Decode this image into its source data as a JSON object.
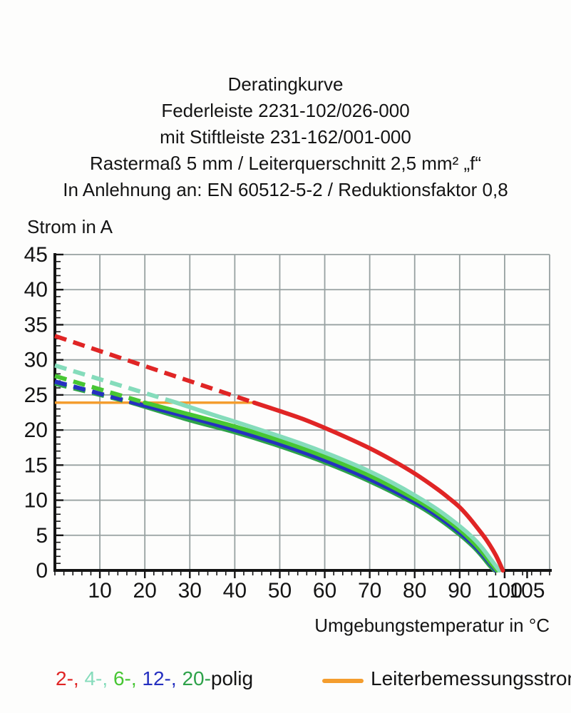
{
  "title": {
    "lines": [
      "Deratingkurve",
      "Federleiste 2231-102/026-000",
      "mit Stiftleiste 231-162/001-000",
      "Rastermaß 5 mm / Leiterquerschnitt 2,5 mm² „f“",
      "In Anlehnung an: EN 60512-5-2 / Reduktionsfaktor 0,8"
    ]
  },
  "chart_data": {
    "type": "line",
    "title": "Deratingkurve",
    "x_axis": {
      "label": "Umgebungstemperatur in °C",
      "min": 0,
      "max": 110,
      "grid_step": 10,
      "minor_tick_step": 2,
      "tick_labels": [
        10,
        20,
        30,
        40,
        50,
        60,
        70,
        80,
        90,
        100,
        105
      ]
    },
    "y_axis": {
      "label": "Strom in A",
      "min": 0,
      "max": 45,
      "grid_step": 5,
      "minor_tick_step": 1,
      "tick_labels": [
        0,
        5,
        10,
        15,
        20,
        25,
        30,
        35,
        40,
        45
      ]
    },
    "grid": true,
    "grid_color": "#97a1a1",
    "axis_color": "#141414",
    "rated_current": {
      "label": "Leiterbemessungsstrom",
      "color": "#f49d2e",
      "value_a": 23.9,
      "x_start": 0,
      "x_end": 44.3
    },
    "series": [
      {
        "name": "20-polig",
        "poles": 20,
        "color": "#2ea24a",
        "dashed": [
          [
            0,
            26.6
          ],
          [
            17,
            23.9
          ]
        ],
        "solid": [
          [
            17,
            23.9
          ],
          [
            30,
            21.4
          ],
          [
            40,
            19.7
          ],
          [
            50,
            17.7
          ],
          [
            60,
            15.4
          ],
          [
            70,
            12.7
          ],
          [
            80,
            9.5
          ],
          [
            85,
            7.5
          ],
          [
            90,
            5.1
          ],
          [
            93,
            3.4
          ],
          [
            95,
            2.0
          ],
          [
            96.8,
            0.6
          ],
          [
            97.8,
            0
          ]
        ]
      },
      {
        "name": "12-polig",
        "poles": 12,
        "color": "#2530c0",
        "dashed": [
          [
            0,
            26.9
          ],
          [
            17.5,
            23.9
          ]
        ],
        "solid": [
          [
            17.5,
            23.9
          ],
          [
            30,
            21.8
          ],
          [
            40,
            20.0
          ],
          [
            50,
            18.0
          ],
          [
            60,
            15.7
          ],
          [
            70,
            13.0
          ],
          [
            80,
            9.8
          ],
          [
            85,
            7.8
          ],
          [
            90,
            5.4
          ],
          [
            93,
            3.7
          ],
          [
            95,
            2.3
          ],
          [
            97,
            0.8
          ],
          [
            98,
            0
          ]
        ]
      },
      {
        "name": "6-polig",
        "poles": 6,
        "color": "#47c633",
        "dashed": [
          [
            0,
            27.7
          ],
          [
            20,
            23.9
          ]
        ],
        "solid": [
          [
            20,
            23.9
          ],
          [
            30,
            22.2
          ],
          [
            40,
            20.5
          ],
          [
            50,
            18.5
          ],
          [
            60,
            16.2
          ],
          [
            70,
            13.5
          ],
          [
            80,
            10.2
          ],
          [
            85,
            8.2
          ],
          [
            90,
            5.8
          ],
          [
            93,
            4.0
          ],
          [
            95,
            2.6
          ],
          [
            97,
            1.0
          ],
          [
            98.3,
            0
          ]
        ]
      },
      {
        "name": "4-polig",
        "poles": 4,
        "color": "#85dcbb",
        "dashed": [
          [
            0,
            29.2
          ],
          [
            27,
            23.9
          ]
        ],
        "solid": [
          [
            27,
            23.9
          ],
          [
            35,
            22.2
          ],
          [
            40,
            21.2
          ],
          [
            50,
            19.1
          ],
          [
            55,
            18.0
          ],
          [
            60,
            16.8
          ],
          [
            65,
            15.5
          ],
          [
            70,
            14.1
          ],
          [
            75,
            12.5
          ],
          [
            80,
            10.7
          ],
          [
            85,
            8.7
          ],
          [
            90,
            6.3
          ],
          [
            93,
            4.6
          ],
          [
            95,
            3.2
          ],
          [
            97,
            1.5
          ],
          [
            98.8,
            0
          ]
        ]
      },
      {
        "name": "2-polig",
        "poles": 2,
        "color": "#e02525",
        "dashed": [
          [
            0,
            33.4
          ],
          [
            44.3,
            23.9
          ]
        ],
        "solid": [
          [
            44.3,
            23.9
          ],
          [
            50,
            22.7
          ],
          [
            55,
            21.6
          ],
          [
            60,
            20.3
          ],
          [
            65,
            18.9
          ],
          [
            70,
            17.4
          ],
          [
            75,
            15.7
          ],
          [
            80,
            13.8
          ],
          [
            85,
            11.6
          ],
          [
            88,
            10.1
          ],
          [
            90,
            9.0
          ],
          [
            92,
            7.6
          ],
          [
            94,
            6.0
          ],
          [
            96,
            4.3
          ],
          [
            98,
            2.2
          ],
          [
            99.6,
            0
          ]
        ]
      }
    ],
    "legend": {
      "pole_items": [
        {
          "text": "2-,",
          "color": "#e02525"
        },
        {
          "text": "4-,",
          "color": "#85dcbb"
        },
        {
          "text": "6-,",
          "color": "#47c633"
        },
        {
          "text": "12-,",
          "color": "#2530c0"
        },
        {
          "text": "20-",
          "color": "#2ea24a"
        }
      ],
      "suffix": "polig",
      "rated_label": "Leiterbemessungsstrom"
    }
  }
}
